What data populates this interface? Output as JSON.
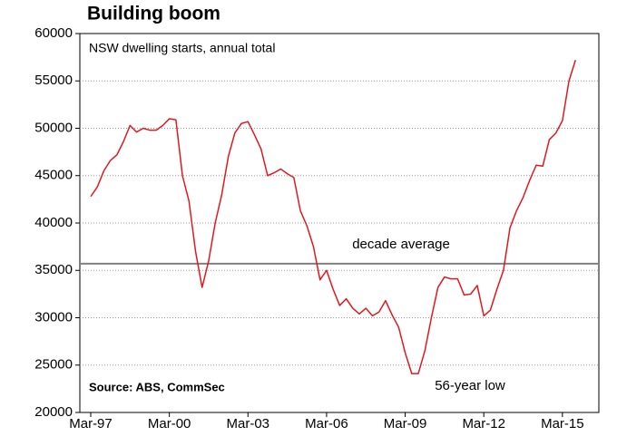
{
  "chart_data": {
    "type": "line",
    "title": "Building boom",
    "subtitle": "NSW dwelling starts, annual total",
    "source": "Source: ABS, CommSec",
    "annotations": [
      "56-year low"
    ],
    "reference": {
      "value": 35700,
      "label": "decade average",
      "color": "#808080"
    },
    "categories": [
      "Mar-97",
      null,
      null,
      null,
      null,
      null,
      null,
      null,
      null,
      null,
      null,
      null,
      "Mar-00",
      null,
      null,
      null,
      null,
      null,
      null,
      null,
      null,
      null,
      null,
      null,
      "Mar-03",
      null,
      null,
      null,
      null,
      null,
      null,
      null,
      null,
      null,
      null,
      null,
      "Mar-06",
      null,
      null,
      null,
      null,
      null,
      null,
      null,
      null,
      null,
      null,
      null,
      "Mar-09",
      null,
      null,
      null,
      null,
      null,
      null,
      null,
      null,
      null,
      null,
      null,
      "Mar-12",
      null,
      null,
      null,
      null,
      null,
      null,
      null,
      null,
      null,
      null,
      null,
      "Mar-15",
      null,
      null
    ],
    "series": [
      {
        "name": "NSW dwelling starts",
        "color": "#e0191e",
        "values": [
          42800,
          43800,
          45500,
          46600,
          47200,
          48600,
          50300,
          49600,
          50000,
          49800,
          49800,
          50300,
          51000,
          50900,
          45000,
          42300,
          37000,
          33200,
          36000,
          40000,
          43000,
          47000,
          49500,
          50500,
          50700,
          49300,
          47800,
          45000,
          45300,
          45700,
          45200,
          44800,
          41300,
          39700,
          37500,
          34000,
          35000,
          33000,
          31300,
          32000,
          31000,
          30400,
          31000,
          30200,
          30600,
          31800,
          30300,
          29000,
          26300,
          24100,
          24100,
          26500,
          30000,
          33200,
          34300,
          34100,
          34100,
          32400,
          32500,
          33400,
          30200,
          30800,
          33000,
          35000,
          39500,
          41300,
          42700,
          44500,
          46100,
          46000,
          48800,
          49500,
          50800,
          55000,
          57200
        ]
      }
    ],
    "ylim": [
      20000,
      60000
    ],
    "yticks": [
      20000,
      25000,
      30000,
      35000,
      40000,
      45000,
      50000,
      55000,
      60000
    ],
    "grid": true
  }
}
